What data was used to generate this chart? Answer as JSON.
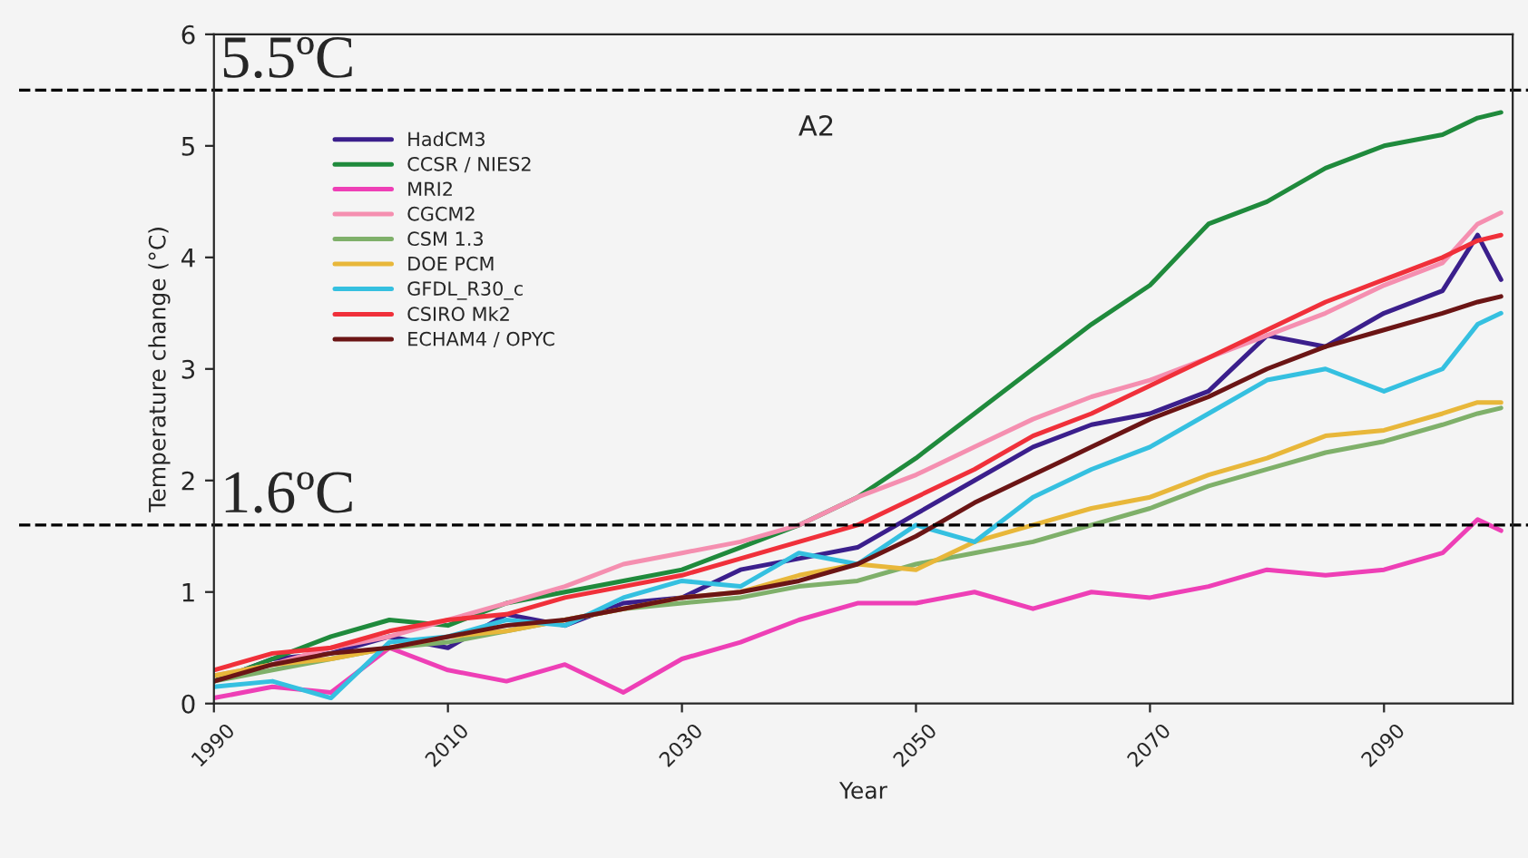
{
  "chart_data": {
    "type": "line",
    "xlabel": "Year",
    "ylabel": "Temperature change (°C)",
    "annotations": [
      "A2"
    ],
    "x": [
      1990,
      1995,
      2000,
      2005,
      2010,
      2015,
      2020,
      2025,
      2030,
      2035,
      2040,
      2045,
      2050,
      2055,
      2060,
      2065,
      2070,
      2075,
      2080,
      2085,
      2090,
      2095,
      2098,
      2100
    ],
    "series": [
      {
        "name": "HadCM3",
        "color": "#3b1f8c",
        "values": [
          0.2,
          0.4,
          0.45,
          0.6,
          0.5,
          0.8,
          0.7,
          0.9,
          0.95,
          1.2,
          1.3,
          1.4,
          1.7,
          2.0,
          2.3,
          2.5,
          2.6,
          2.8,
          3.3,
          3.2,
          3.5,
          3.7,
          4.2,
          3.8
        ]
      },
      {
        "name": "CCSR / NIES2",
        "color": "#1f8a3c",
        "values": [
          0.2,
          0.4,
          0.6,
          0.75,
          0.7,
          0.9,
          1.0,
          1.1,
          1.2,
          1.4,
          1.6,
          1.85,
          2.2,
          2.6,
          3.0,
          3.4,
          3.75,
          4.3,
          4.5,
          4.8,
          5.0,
          5.1,
          5.25,
          5.3
        ]
      },
      {
        "name": "MRI2",
        "color": "#ee3fb6",
        "values": [
          0.05,
          0.15,
          0.1,
          0.5,
          0.3,
          0.2,
          0.35,
          0.1,
          0.4,
          0.55,
          0.75,
          0.9,
          0.9,
          1.0,
          0.85,
          1.0,
          0.95,
          1.05,
          1.2,
          1.15,
          1.2,
          1.35,
          1.65,
          1.55
        ]
      },
      {
        "name": "CGCM2",
        "color": "#f58fb0",
        "values": [
          0.25,
          0.35,
          0.5,
          0.6,
          0.75,
          0.9,
          1.05,
          1.25,
          1.35,
          1.45,
          1.6,
          1.85,
          2.05,
          2.3,
          2.55,
          2.75,
          2.9,
          3.1,
          3.3,
          3.5,
          3.75,
          3.95,
          4.3,
          4.4
        ]
      },
      {
        "name": "CSM 1.3",
        "color": "#7fb06a",
        "values": [
          0.2,
          0.3,
          0.4,
          0.5,
          0.55,
          0.65,
          0.75,
          0.85,
          0.9,
          0.95,
          1.05,
          1.1,
          1.25,
          1.35,
          1.45,
          1.6,
          1.75,
          1.95,
          2.1,
          2.25,
          2.35,
          2.5,
          2.6,
          2.65
        ]
      },
      {
        "name": "DOE PCM",
        "color": "#e8b73a",
        "values": [
          0.25,
          0.35,
          0.4,
          0.5,
          0.6,
          0.65,
          0.75,
          0.85,
          0.95,
          1.0,
          1.15,
          1.25,
          1.2,
          1.45,
          1.6,
          1.75,
          1.85,
          2.05,
          2.2,
          2.4,
          2.45,
          2.6,
          2.7,
          2.7
        ]
      },
      {
        "name": "GFDL_R30_c",
        "color": "#35c0e0",
        "values": [
          0.15,
          0.2,
          0.05,
          0.55,
          0.6,
          0.75,
          0.7,
          0.95,
          1.1,
          1.05,
          1.35,
          1.25,
          1.6,
          1.45,
          1.85,
          2.1,
          2.3,
          2.6,
          2.9,
          3.0,
          2.8,
          3.0,
          3.4,
          3.5
        ]
      },
      {
        "name": "CSIRO Mk2",
        "color": "#f0303a",
        "values": [
          0.3,
          0.45,
          0.5,
          0.65,
          0.75,
          0.8,
          0.95,
          1.05,
          1.15,
          1.3,
          1.45,
          1.6,
          1.85,
          2.1,
          2.4,
          2.6,
          2.85,
          3.1,
          3.35,
          3.6,
          3.8,
          4.0,
          4.15,
          4.2
        ]
      },
      {
        "name": "ECHAM4 / OPYC",
        "color": "#6b1515",
        "values": [
          0.2,
          0.35,
          0.45,
          0.5,
          0.6,
          0.7,
          0.75,
          0.85,
          0.95,
          1.0,
          1.1,
          1.25,
          1.5,
          1.8,
          2.05,
          2.3,
          2.55,
          2.75,
          3.0,
          3.2,
          3.35,
          3.5,
          3.6,
          3.65
        ]
      }
    ],
    "xlim": [
      1990,
      2101
    ],
    "ylim": [
      0,
      6
    ],
    "xticks": [
      1990,
      2010,
      2030,
      2050,
      2070,
      2090
    ],
    "yticks": [
      0,
      1,
      2,
      3,
      4,
      5,
      6
    ],
    "ref_lines": [
      {
        "axis": "y",
        "value": 5.5,
        "label": "5.5ºC",
        "color": "#000000",
        "line_style": "dashed"
      },
      {
        "axis": "y",
        "value": 1.6,
        "label": "1.6ºC",
        "color": "#000000",
        "line_style": "dashed"
      }
    ],
    "grid": false,
    "legend": "top left",
    "marker": "none",
    "line_style": "solid"
  }
}
